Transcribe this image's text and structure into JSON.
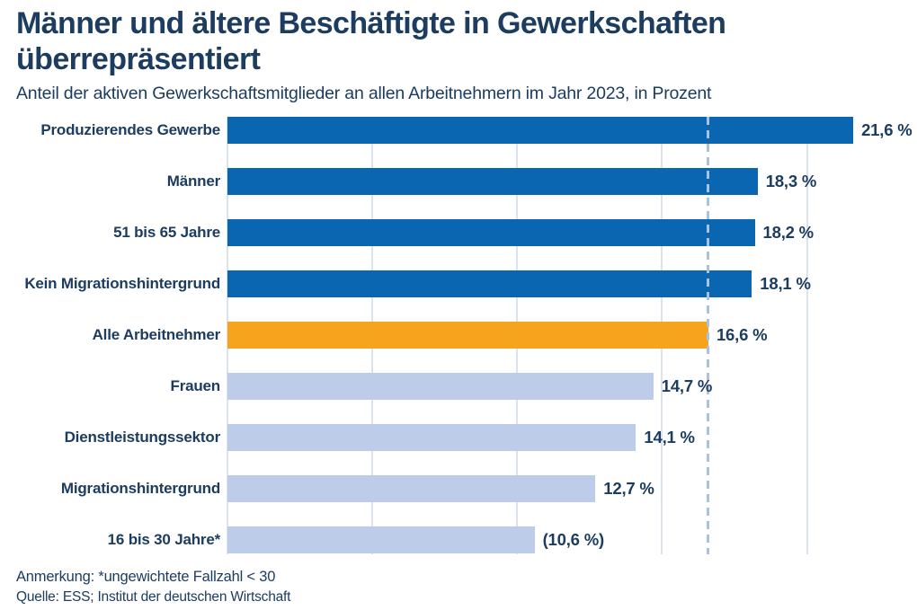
{
  "header": {
    "title_line1": "Männer und ältere Beschäftigte in Gewerkschaften",
    "title_line2": "überrepräsentiert",
    "subtitle": "Anteil der aktiven Gewerkschaftsmitglieder an allen Arbeitnehmern im Jahr 2023, in Prozent"
  },
  "chart_data": {
    "type": "bar",
    "orientation": "horizontal",
    "title": "Männer und ältere Beschäftigte in Gewerkschaften überrepräsentiert",
    "subtitle": "Anteil der aktiven Gewerkschaftsmitglieder an allen Arbeitnehmern im Jahr 2023, in Prozent",
    "categories": [
      "Produzierendes Gewerbe",
      "Männer",
      "51 bis 65 Jahre",
      "Kein Migrationshintergrund",
      "Alle Arbeitnehmer",
      "Frauen",
      "Dienstleistungssektor",
      "Migrationshintergrund",
      "16 bis 30 Jahre*"
    ],
    "values": [
      21.6,
      18.3,
      18.2,
      18.1,
      16.6,
      14.7,
      14.1,
      12.7,
      10.6
    ],
    "value_labels": [
      "21,6 %",
      "18,3 %",
      "18,2 %",
      "18,1 %",
      "16,6 %",
      "14,7 %",
      "14,1 %",
      "12,7 %",
      "(10,6 %)"
    ],
    "bar_color_roles": [
      "dark",
      "dark",
      "dark",
      "dark",
      "accent",
      "light",
      "light",
      "light",
      "light"
    ],
    "xlim": [
      0,
      23.8
    ],
    "gridlines": [
      0,
      5,
      10,
      15,
      20
    ],
    "grid": "on",
    "reference_line": 16.6,
    "legend_position": "none",
    "colors": {
      "dark_blue": "#0A66B1",
      "accent_orange": "#F6A41E",
      "light_blue": "#BDCDE9",
      "grid_line": "#DCE3EC",
      "reference_line": "#ABC2DF",
      "text_navy": "#1C3C60"
    }
  },
  "footer": {
    "note": "Anmerkung: *ungewichtete Fallzahl < 30",
    "source": "Quelle: ESS; Institut der deutschen Wirtschaft"
  }
}
